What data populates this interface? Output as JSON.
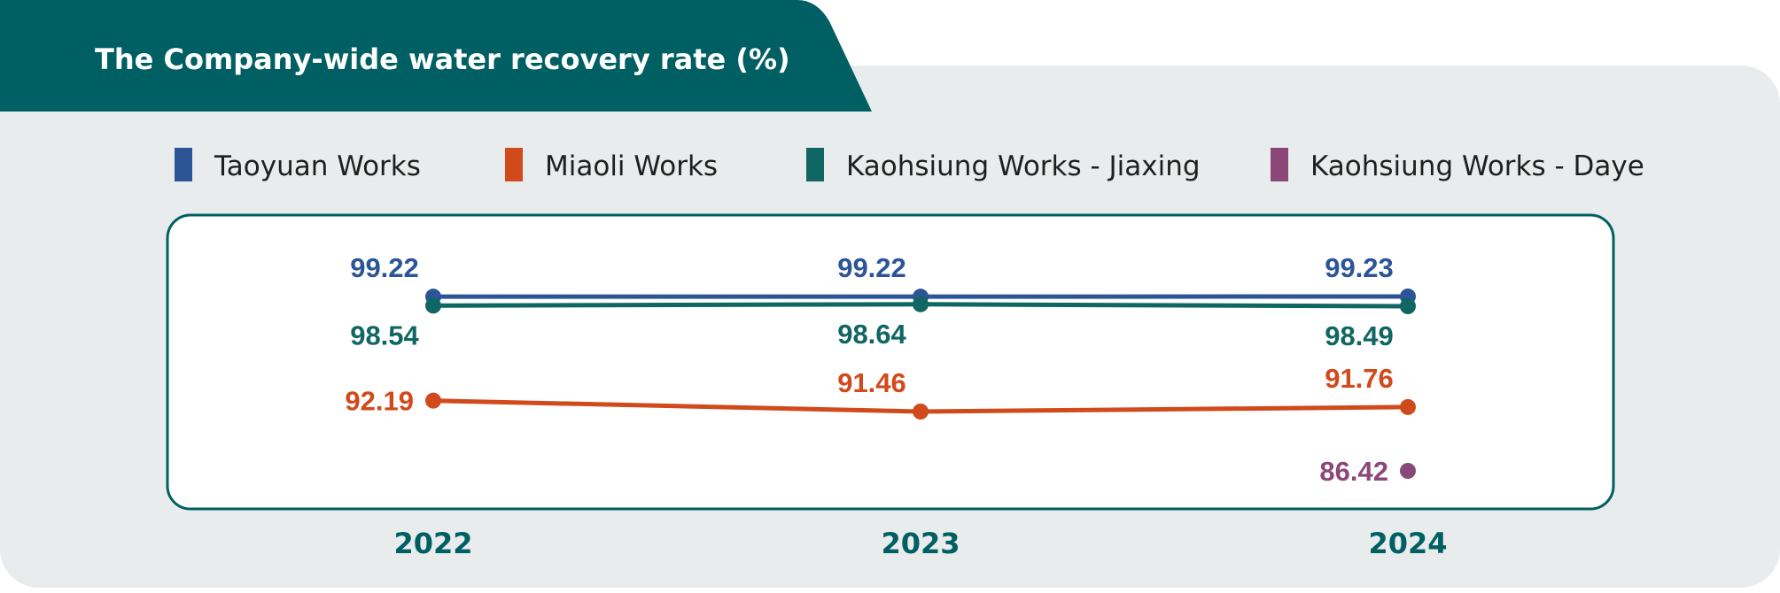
{
  "chart_data": {
    "type": "line",
    "title": "The Company-wide water recovery rate (%)",
    "categories": [
      "2022",
      "2023",
      "2024"
    ],
    "series": [
      {
        "name": "Taoyuan Works",
        "color": "#2b5597",
        "values": [
          99.22,
          99.22,
          99.23
        ]
      },
      {
        "name": "Miaoli Works",
        "color": "#d04a1b",
        "values": [
          92.19,
          91.46,
          91.76
        ]
      },
      {
        "name": "Kaohsiung Works - Jiaxing",
        "color": "#0f6663",
        "values": [
          98.54,
          98.64,
          98.49
        ]
      },
      {
        "name": "Kaohsiung Works - Daye",
        "color": "#8b4778",
        "values": [
          null,
          null,
          86.42
        ]
      }
    ],
    "legend_position": "top",
    "grid": false
  },
  "colors": {
    "title_band": "#005f63",
    "panel": "#e9ecec",
    "plot_border": "#005f63",
    "axis_text": "#005f63"
  }
}
